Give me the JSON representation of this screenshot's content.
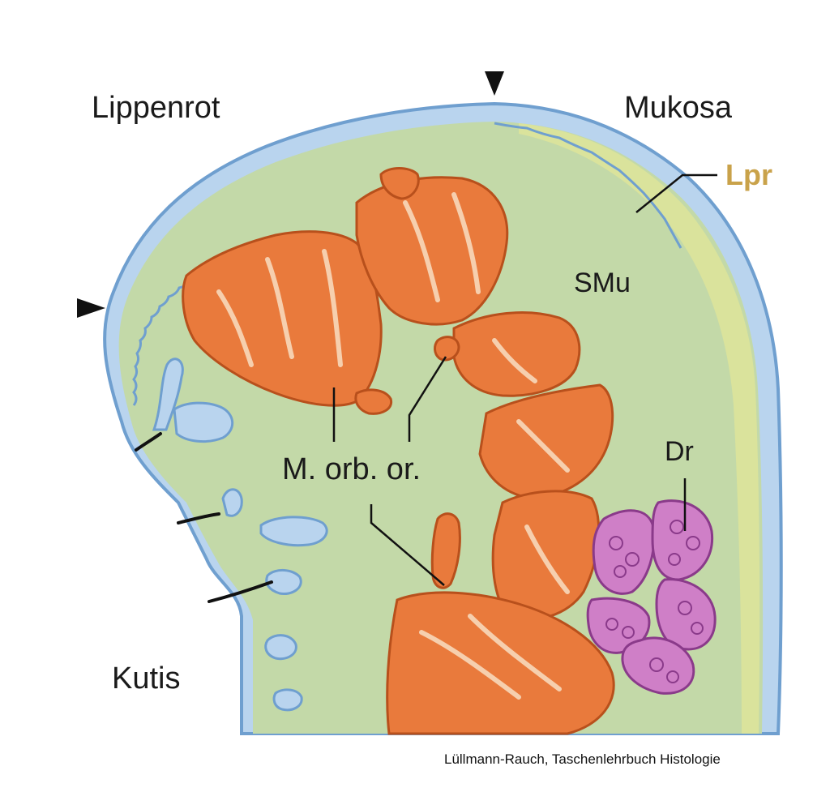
{
  "labels": {
    "lippenrot": "Lippenrot",
    "mukosa": "Mukosa",
    "lpr": "Lpr",
    "smu": "SMu",
    "m_orb_or": "M. orb. or.",
    "dr": "Dr",
    "kutis": "Kutis"
  },
  "credit": "Lüllmann-Rauch, Taschenlehrbuch Histologie",
  "colors": {
    "epithelium": "#b9d4ee",
    "epithelium_stroke": "#6f9fcf",
    "submucosa": "#c3d9a8",
    "lamina_propria": "#dde39a",
    "muscle": "#e97a3c",
    "muscle_stroke": "#b8501c",
    "gland": "#cf7fc7",
    "gland_stroke": "#8a3a8a",
    "connective_tissue": "#f6cfae"
  }
}
